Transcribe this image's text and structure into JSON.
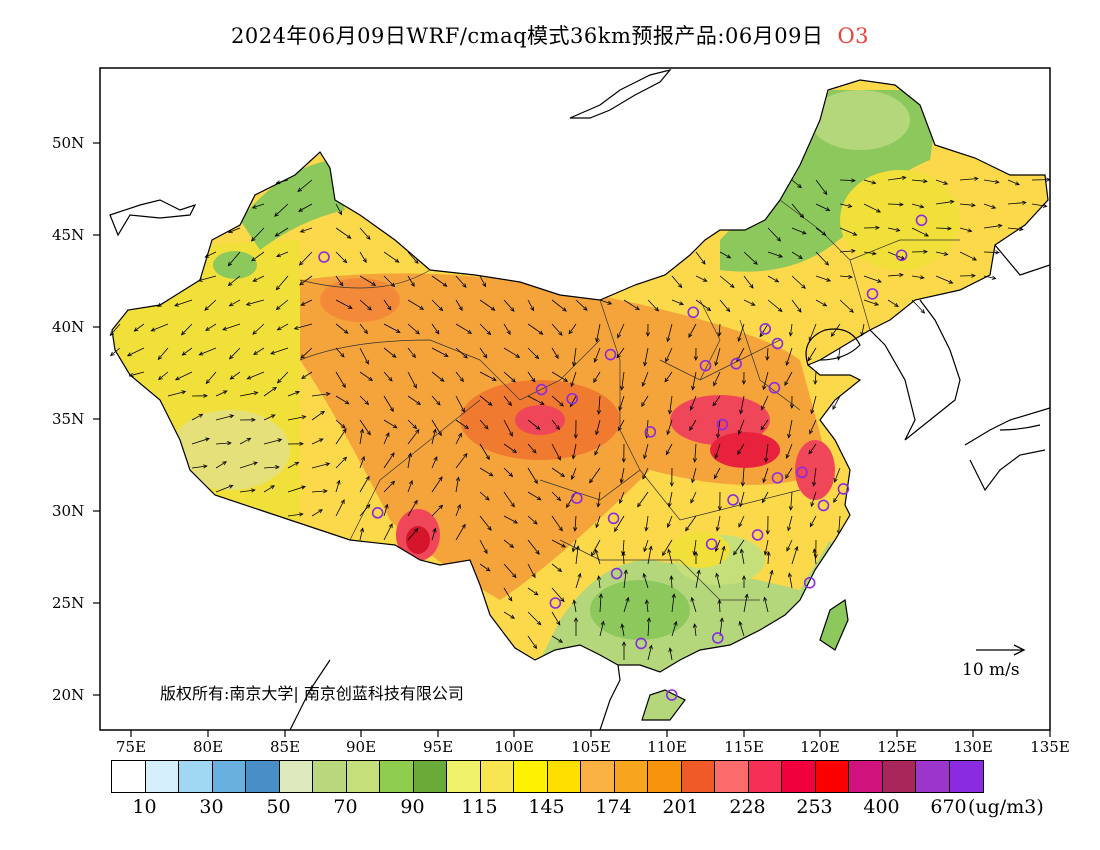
{
  "title": {
    "main": "2024年06月09日WRF/cmaq模式36km预报产品:06月09日",
    "pollutant": "O3"
  },
  "axes": {
    "lat_labels": [
      "50N",
      "45N",
      "40N",
      "35N",
      "30N",
      "25N",
      "20N"
    ],
    "lon_labels": [
      "75E",
      "80E",
      "85E",
      "90E",
      "95E",
      "100E",
      "105E",
      "110E",
      "115E",
      "120E",
      "125E",
      "130E",
      "135E"
    ]
  },
  "copyright": "版权所有:南京大学| 南京创蓝科技有限公司",
  "wind_reference": "10 m/s",
  "colorbar": {
    "colors": [
      "#ffffff",
      "#d6effc",
      "#a0d8f4",
      "#6ab0df",
      "#4a8ec8",
      "#ddeabd",
      "#b9d77d",
      "#c5e07a",
      "#8ecd4e",
      "#6aaa38",
      "#f0f26a",
      "#f7e652",
      "#fff200",
      "#ffdf00",
      "#f9b242",
      "#f7a41e",
      "#f7930c",
      "#f05a28",
      "#fb6b6b",
      "#f52f55",
      "#f0003c",
      "#fa0000",
      "#d0137c",
      "#a8265a",
      "#9b35cb",
      "#8a2be2"
    ],
    "labels": [
      "10",
      "30",
      "50",
      "70",
      "90",
      "115",
      "145",
      "174",
      "201",
      "228",
      "253",
      "400",
      "670"
    ],
    "unit": "(ug/m3)"
  },
  "region_colors": {
    "ocean": "#ffffff",
    "land_outside": "#ffffff",
    "base": "#fbd94a",
    "west": "#f2e03a",
    "orange": "#f5a43b",
    "red": "#f0465a",
    "hot": "#e8213d",
    "green": "#8cc85b",
    "lightgreen": "#b5d77c"
  },
  "monitor_sites": [
    {
      "lon": 87.6,
      "lat": 43.8
    },
    {
      "lon": 91.1,
      "lat": 29.9
    },
    {
      "lon": 101.8,
      "lat": 36.6
    },
    {
      "lon": 103.8,
      "lat": 36.1
    },
    {
      "lon": 106.3,
      "lat": 38.5
    },
    {
      "lon": 104.1,
      "lat": 30.7
    },
    {
      "lon": 106.5,
      "lat": 29.6
    },
    {
      "lon": 106.7,
      "lat": 26.6
    },
    {
      "lon": 102.7,
      "lat": 25.0
    },
    {
      "lon": 108.3,
      "lat": 22.8
    },
    {
      "lon": 110.3,
      "lat": 20.0
    },
    {
      "lon": 113.3,
      "lat": 23.1
    },
    {
      "lon": 112.9,
      "lat": 28.2
    },
    {
      "lon": 114.3,
      "lat": 30.6
    },
    {
      "lon": 115.9,
      "lat": 28.7
    },
    {
      "lon": 119.3,
      "lat": 26.1
    },
    {
      "lon": 120.2,
      "lat": 30.3
    },
    {
      "lon": 121.5,
      "lat": 31.2
    },
    {
      "lon": 118.8,
      "lat": 32.1
    },
    {
      "lon": 117.2,
      "lat": 31.8
    },
    {
      "lon": 113.6,
      "lat": 34.7
    },
    {
      "lon": 108.9,
      "lat": 34.3
    },
    {
      "lon": 112.5,
      "lat": 37.9
    },
    {
      "lon": 111.7,
      "lat": 40.8
    },
    {
      "lon": 114.5,
      "lat": 38.0
    },
    {
      "lon": 116.4,
      "lat": 39.9
    },
    {
      "lon": 117.2,
      "lat": 39.1
    },
    {
      "lon": 117.0,
      "lat": 36.7
    },
    {
      "lon": 123.4,
      "lat": 41.8
    },
    {
      "lon": 125.3,
      "lat": 43.9
    },
    {
      "lon": 126.6,
      "lat": 45.8
    }
  ]
}
